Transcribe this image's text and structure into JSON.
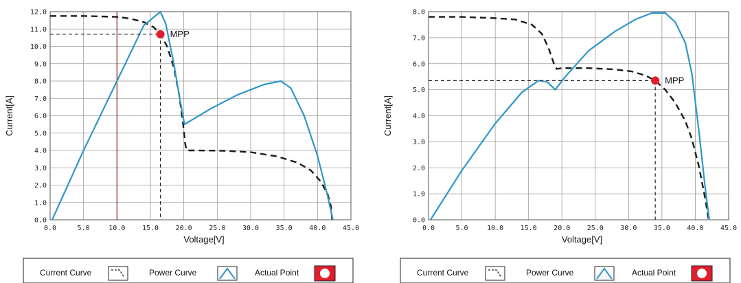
{
  "legend": {
    "current_label": "Current Curve",
    "power_label": "Power Curve",
    "actual_label": "Actual Point"
  },
  "colors": {
    "current": "#1a1a1a",
    "power": "#2e96c8",
    "actual": "#e01e2d",
    "marker": "#8b1a1a",
    "grid": "#9a9a9a"
  },
  "chart_data": [
    {
      "type": "line",
      "xlabel": "Voltage[V]",
      "ylabel": "Current[A]",
      "xlim": [
        0,
        45
      ],
      "ylim": [
        0,
        12
      ],
      "x_ticks": [
        "0.0",
        "5.0",
        "10.0",
        "15.0",
        "20.0",
        "25.0",
        "30.0",
        "35.0",
        "40.0",
        "45.0"
      ],
      "y_ticks": [
        "0.0",
        "1.0",
        "2.0",
        "3.0",
        "4.0",
        "5.0",
        "6.0",
        "7.0",
        "8.0",
        "9.0",
        "10.0",
        "11.0",
        "12.0"
      ],
      "grid": true,
      "annotation": "MPP",
      "mpp": {
        "x": 16.5,
        "y": 10.7
      },
      "marker_line_x": 10,
      "series": [
        {
          "role": "current",
          "style": "dashed",
          "x": [
            0,
            5,
            10,
            12,
            14,
            15.5,
            16.5,
            17.5,
            18.5,
            19.3,
            19.9,
            20.2,
            20.4,
            22,
            26,
            30,
            34,
            37,
            39,
            40.5,
            41.5,
            42,
            42.2
          ],
          "y": [
            11.75,
            11.75,
            11.7,
            11.6,
            11.4,
            11.1,
            10.7,
            10.0,
            8.8,
            7.2,
            5.5,
            4.4,
            4.0,
            4.0,
            3.98,
            3.9,
            3.65,
            3.3,
            2.85,
            2.2,
            1.5,
            0.8,
            0.0
          ]
        },
        {
          "role": "power",
          "style": "solid",
          "x": [
            0.3,
            5,
            10,
            14,
            16.5,
            17.3,
            18.5,
            19.4,
            20.1,
            24,
            28,
            32,
            34.5,
            36,
            38,
            40,
            41.5,
            42.3
          ],
          "y": [
            0.0,
            4.0,
            8.0,
            11.2,
            12.0,
            11.3,
            9.0,
            7.0,
            5.5,
            6.4,
            7.2,
            7.8,
            8.0,
            7.6,
            6.0,
            3.7,
            1.4,
            0.0
          ]
        }
      ]
    },
    {
      "type": "line",
      "xlabel": "Voltage[V]",
      "ylabel": "Current[A]",
      "xlim": [
        0,
        45
      ],
      "ylim": [
        0,
        8
      ],
      "x_ticks": [
        "0.0",
        "5.0",
        "10.0",
        "15.0",
        "20.0",
        "25.0",
        "30.0",
        "35.0",
        "40.0",
        "45.0"
      ],
      "y_ticks": [
        "0.0",
        "1.0",
        "2.0",
        "3.0",
        "4.0",
        "5.0",
        "6.0",
        "7.0",
        "8.0"
      ],
      "grid": true,
      "annotation": "MPP",
      "mpp": {
        "x": 34,
        "y": 5.35
      },
      "series": [
        {
          "role": "current",
          "style": "dashed",
          "x": [
            0,
            5,
            10,
            13,
            15.5,
            17,
            18,
            18.8,
            19.2,
            20,
            24,
            28,
            30.5,
            32.5,
            34,
            35.5,
            37,
            38.5,
            39.5,
            40.5,
            41.5,
            42
          ],
          "y": [
            7.8,
            7.8,
            7.75,
            7.7,
            7.5,
            7.15,
            6.6,
            6.0,
            5.8,
            5.83,
            5.83,
            5.78,
            5.7,
            5.55,
            5.35,
            5.0,
            4.5,
            3.8,
            3.1,
            2.1,
            0.8,
            0.0
          ]
        },
        {
          "role": "power",
          "style": "solid",
          "x": [
            0.3,
            5,
            10,
            14,
            16.5,
            17.8,
            19,
            20.5,
            24,
            28,
            31,
            33.5,
            35.5,
            37,
            38.5,
            39.5,
            40.5,
            41.5,
            42.1
          ],
          "y": [
            0.0,
            1.9,
            3.7,
            4.9,
            5.35,
            5.3,
            5.0,
            5.5,
            6.5,
            7.25,
            7.7,
            7.95,
            7.95,
            7.6,
            6.8,
            5.6,
            3.5,
            1.2,
            0.0
          ]
        }
      ]
    }
  ]
}
